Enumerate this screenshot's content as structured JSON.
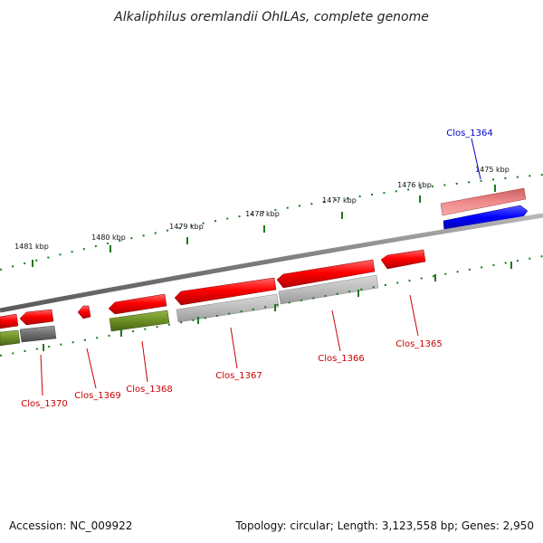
{
  "title": "Alkaliphilus oremlandii OhILAs, complete genome",
  "footer": {
    "accession": "Accession: NC_009922",
    "summary": "Topology: circular; Length: 3,123,558 bp; Genes: 2,950"
  },
  "scale_labels": [
    "1475 kbp",
    "1476 kbp",
    "1477 kbp",
    "1478 kbp",
    "1479 kbp",
    "1480 kbp",
    "1481 kbp"
  ],
  "genes": [
    {
      "name": "Clos_1364",
      "color": "#0000cc"
    },
    {
      "name": "Clos_1365",
      "color": "#cc0000"
    },
    {
      "name": "Clos_1366",
      "color": "#cc0000"
    },
    {
      "name": "Clos_1367",
      "color": "#cc0000"
    },
    {
      "name": "Clos_1368",
      "color": "#cc0000"
    },
    {
      "name": "Clos_1369",
      "color": "#cc0000"
    },
    {
      "name": "Clos_1370",
      "color": "#cc0000"
    }
  ],
  "colors": {
    "forward_cds": "#0000ee",
    "reverse_cds": "#ee0000",
    "backbone": "#808080",
    "tick": "#1a7a1a",
    "forward_feature": "#f08080",
    "gray_feature": "#b0b0b0",
    "olive_feature": "#6b8e23",
    "dark_gray_feature": "#707070"
  }
}
